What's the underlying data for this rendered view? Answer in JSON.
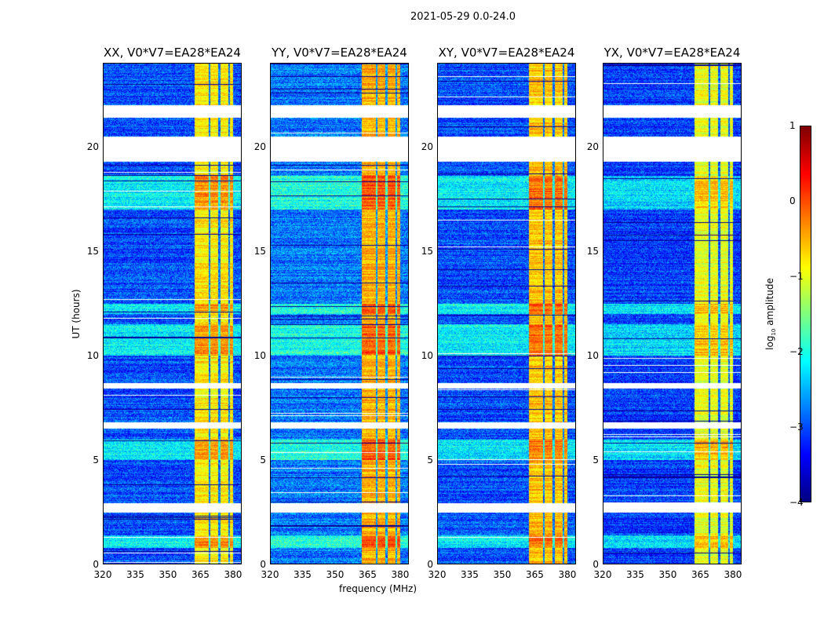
{
  "chart_data": {
    "type": "heatmap",
    "title": "2021-05-29 0.0-24.0",
    "xlabel": "frequency (MHz)",
    "ylabel": "UT (hours)",
    "xlim": [
      320,
      384
    ],
    "ylim": [
      0,
      24
    ],
    "xticks": [
      "320",
      "335",
      "350",
      "365",
      "380"
    ],
    "yticks": [
      "0",
      "5",
      "10",
      "15",
      "20"
    ],
    "colorbar": {
      "label_prefix": "log",
      "label_sub": "10",
      "label_suffix": " amplitude",
      "range": [
        -4,
        1
      ],
      "ticks": [
        "1",
        "0",
        "−1",
        "−2",
        "−3",
        "−4"
      ],
      "colormap": "jet"
    },
    "panels": [
      {
        "title": "XX, V0*V7=EA28*EA24",
        "band_level": -0.8,
        "bg_level": -3.0
      },
      {
        "title": "YY, V0*V7=EA28*EA24",
        "band_level": -0.5,
        "bg_level": -2.8
      },
      {
        "title": "XY, V0*V7=EA28*EA24",
        "band_level": -0.6,
        "bg_level": -3.0
      },
      {
        "title": "YX, V0*V7=EA28*EA24",
        "band_level": -1.0,
        "bg_level": -3.1
      }
    ],
    "bright_band_mhz": [
      362,
      380
    ],
    "band_dividers_mhz": [
      369,
      373.5,
      378
    ],
    "flagged_hours": [
      [
        21.4,
        22.0
      ],
      [
        19.3,
        20.5
      ],
      [
        8.45,
        8.7
      ],
      [
        6.5,
        6.8
      ],
      [
        2.5,
        2.95
      ]
    ],
    "elevated_hours": [
      [
        17.0,
        18.6
      ],
      [
        5.0,
        6.0
      ],
      [
        10.0,
        11.5
      ],
      [
        12.0,
        12.5
      ],
      [
        0.8,
        1.4
      ]
    ]
  }
}
